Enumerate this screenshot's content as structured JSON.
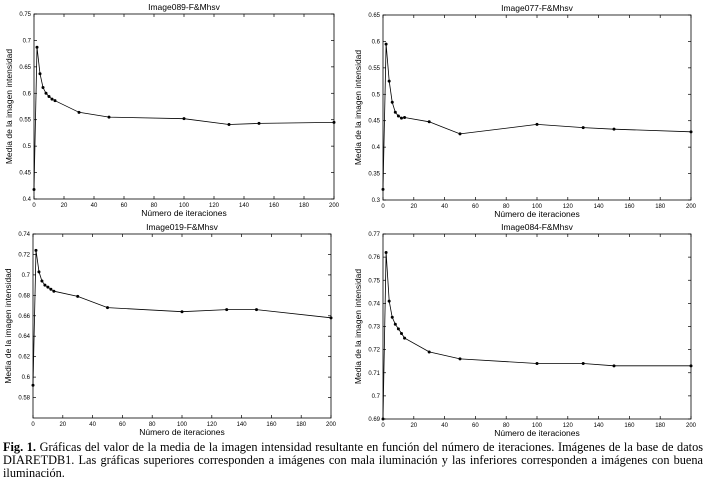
{
  "caption": {
    "label": "Fig. 1.",
    "text": "Gráficas del valor de la media de la imagen intensidad resultante en función del número de iteraciones. Imágenes de la base de datos DIARETDB1. Las gráficas superiores corresponden a imágenes con mala iluminación y las inferiores corresponden a imágenes con buena iluminación."
  },
  "chart_data": [
    {
      "type": "line",
      "title": "Image089-F&Mhsv",
      "xlabel": "Número de iteraciones",
      "ylabel": "Media de la imagen intensidad",
      "xlim": [
        0,
        200
      ],
      "ylim": [
        0.4,
        0.75
      ],
      "xticks": [
        0,
        20,
        40,
        60,
        80,
        100,
        120,
        140,
        160,
        180,
        200
      ],
      "yticks": [
        0.4,
        0.45,
        0.5,
        0.55,
        0.6,
        0.65,
        0.7,
        0.75
      ],
      "ytick_labels": [
        "0.4",
        "0.45",
        "0.5",
        "0.55",
        "0.6",
        "0.65",
        "0.7",
        "0.75"
      ],
      "series": [
        {
          "x": [
            0,
            2,
            4,
            6,
            8,
            10,
            12,
            14,
            30,
            50,
            100,
            130,
            150,
            200
          ],
          "y": [
            0.418,
            0.687,
            0.637,
            0.611,
            0.6,
            0.594,
            0.589,
            0.586,
            0.564,
            0.555,
            0.552,
            0.541,
            0.543,
            0.545
          ]
        }
      ]
    },
    {
      "type": "line",
      "title": "Image077-F&Mhsv",
      "xlabel": "Número de iteraciones",
      "ylabel": "Media de la imagen intensidad",
      "xlim": [
        0,
        200
      ],
      "ylim": [
        0.3,
        0.65
      ],
      "xticks": [
        0,
        20,
        40,
        60,
        80,
        100,
        120,
        140,
        160,
        180,
        200
      ],
      "yticks": [
        0.3,
        0.35,
        0.4,
        0.45,
        0.5,
        0.55,
        0.6,
        0.65
      ],
      "ytick_labels": [
        "0.3",
        "0.35",
        "0.4",
        "0.45",
        "0.5",
        "0.55",
        "0.6",
        "0.65"
      ],
      "series": [
        {
          "x": [
            0,
            2,
            4,
            6,
            8,
            10,
            12,
            14,
            30,
            50,
            100,
            130,
            150,
            200
          ],
          "y": [
            0.32,
            0.595,
            0.525,
            0.485,
            0.466,
            0.459,
            0.455,
            0.456,
            0.448,
            0.425,
            0.443,
            0.437,
            0.434,
            0.429
          ]
        }
      ]
    },
    {
      "type": "line",
      "title": "Image019-F&Mhsv",
      "xlabel": "Número de iteraciones",
      "ylabel": "Media de la imagen intensidad",
      "xlim": [
        0,
        200
      ],
      "ylim": [
        0.56,
        0.74
      ],
      "xticks": [
        0,
        20,
        40,
        60,
        80,
        100,
        120,
        140,
        160,
        180,
        200
      ],
      "yticks": [
        0.58,
        0.6,
        0.62,
        0.64,
        0.66,
        0.68,
        0.7,
        0.72,
        0.74
      ],
      "ytick_labels": [
        "0.58",
        "0.6",
        "0.62",
        "0.64",
        "0.66",
        "0.68",
        "0.7",
        "0.72",
        "0.74"
      ],
      "series": [
        {
          "x": [
            0,
            2,
            4,
            6,
            8,
            10,
            12,
            14,
            30,
            50,
            100,
            130,
            150,
            200
          ],
          "y": [
            0.592,
            0.724,
            0.703,
            0.694,
            0.69,
            0.688,
            0.686,
            0.684,
            0.679,
            0.668,
            0.664,
            0.666,
            0.666,
            0.658
          ]
        }
      ]
    },
    {
      "type": "line",
      "title": "Image084-F&Mhsv",
      "xlabel": "Número de iteraciones",
      "ylabel": "Media de la imagen intensidad",
      "xlim": [
        0,
        200
      ],
      "ylim": [
        0.69,
        0.77
      ],
      "xticks": [
        0,
        20,
        40,
        60,
        80,
        100,
        120,
        140,
        160,
        180,
        200
      ],
      "yticks": [
        0.69,
        0.7,
        0.71,
        0.72,
        0.73,
        0.74,
        0.75,
        0.76,
        0.77
      ],
      "ytick_labels": [
        "0.69",
        "0.7",
        "0.71",
        "0.72",
        "0.73",
        "0.74",
        "0.75",
        "0.76",
        "0.77"
      ],
      "series": [
        {
          "x": [
            0,
            2,
            4,
            6,
            8,
            10,
            12,
            14,
            30,
            50,
            100,
            130,
            150,
            200
          ],
          "y": [
            0.69,
            0.762,
            0.741,
            0.734,
            0.731,
            0.729,
            0.727,
            0.725,
            0.719,
            0.716,
            0.714,
            0.714,
            0.713,
            0.713
          ]
        }
      ]
    }
  ]
}
